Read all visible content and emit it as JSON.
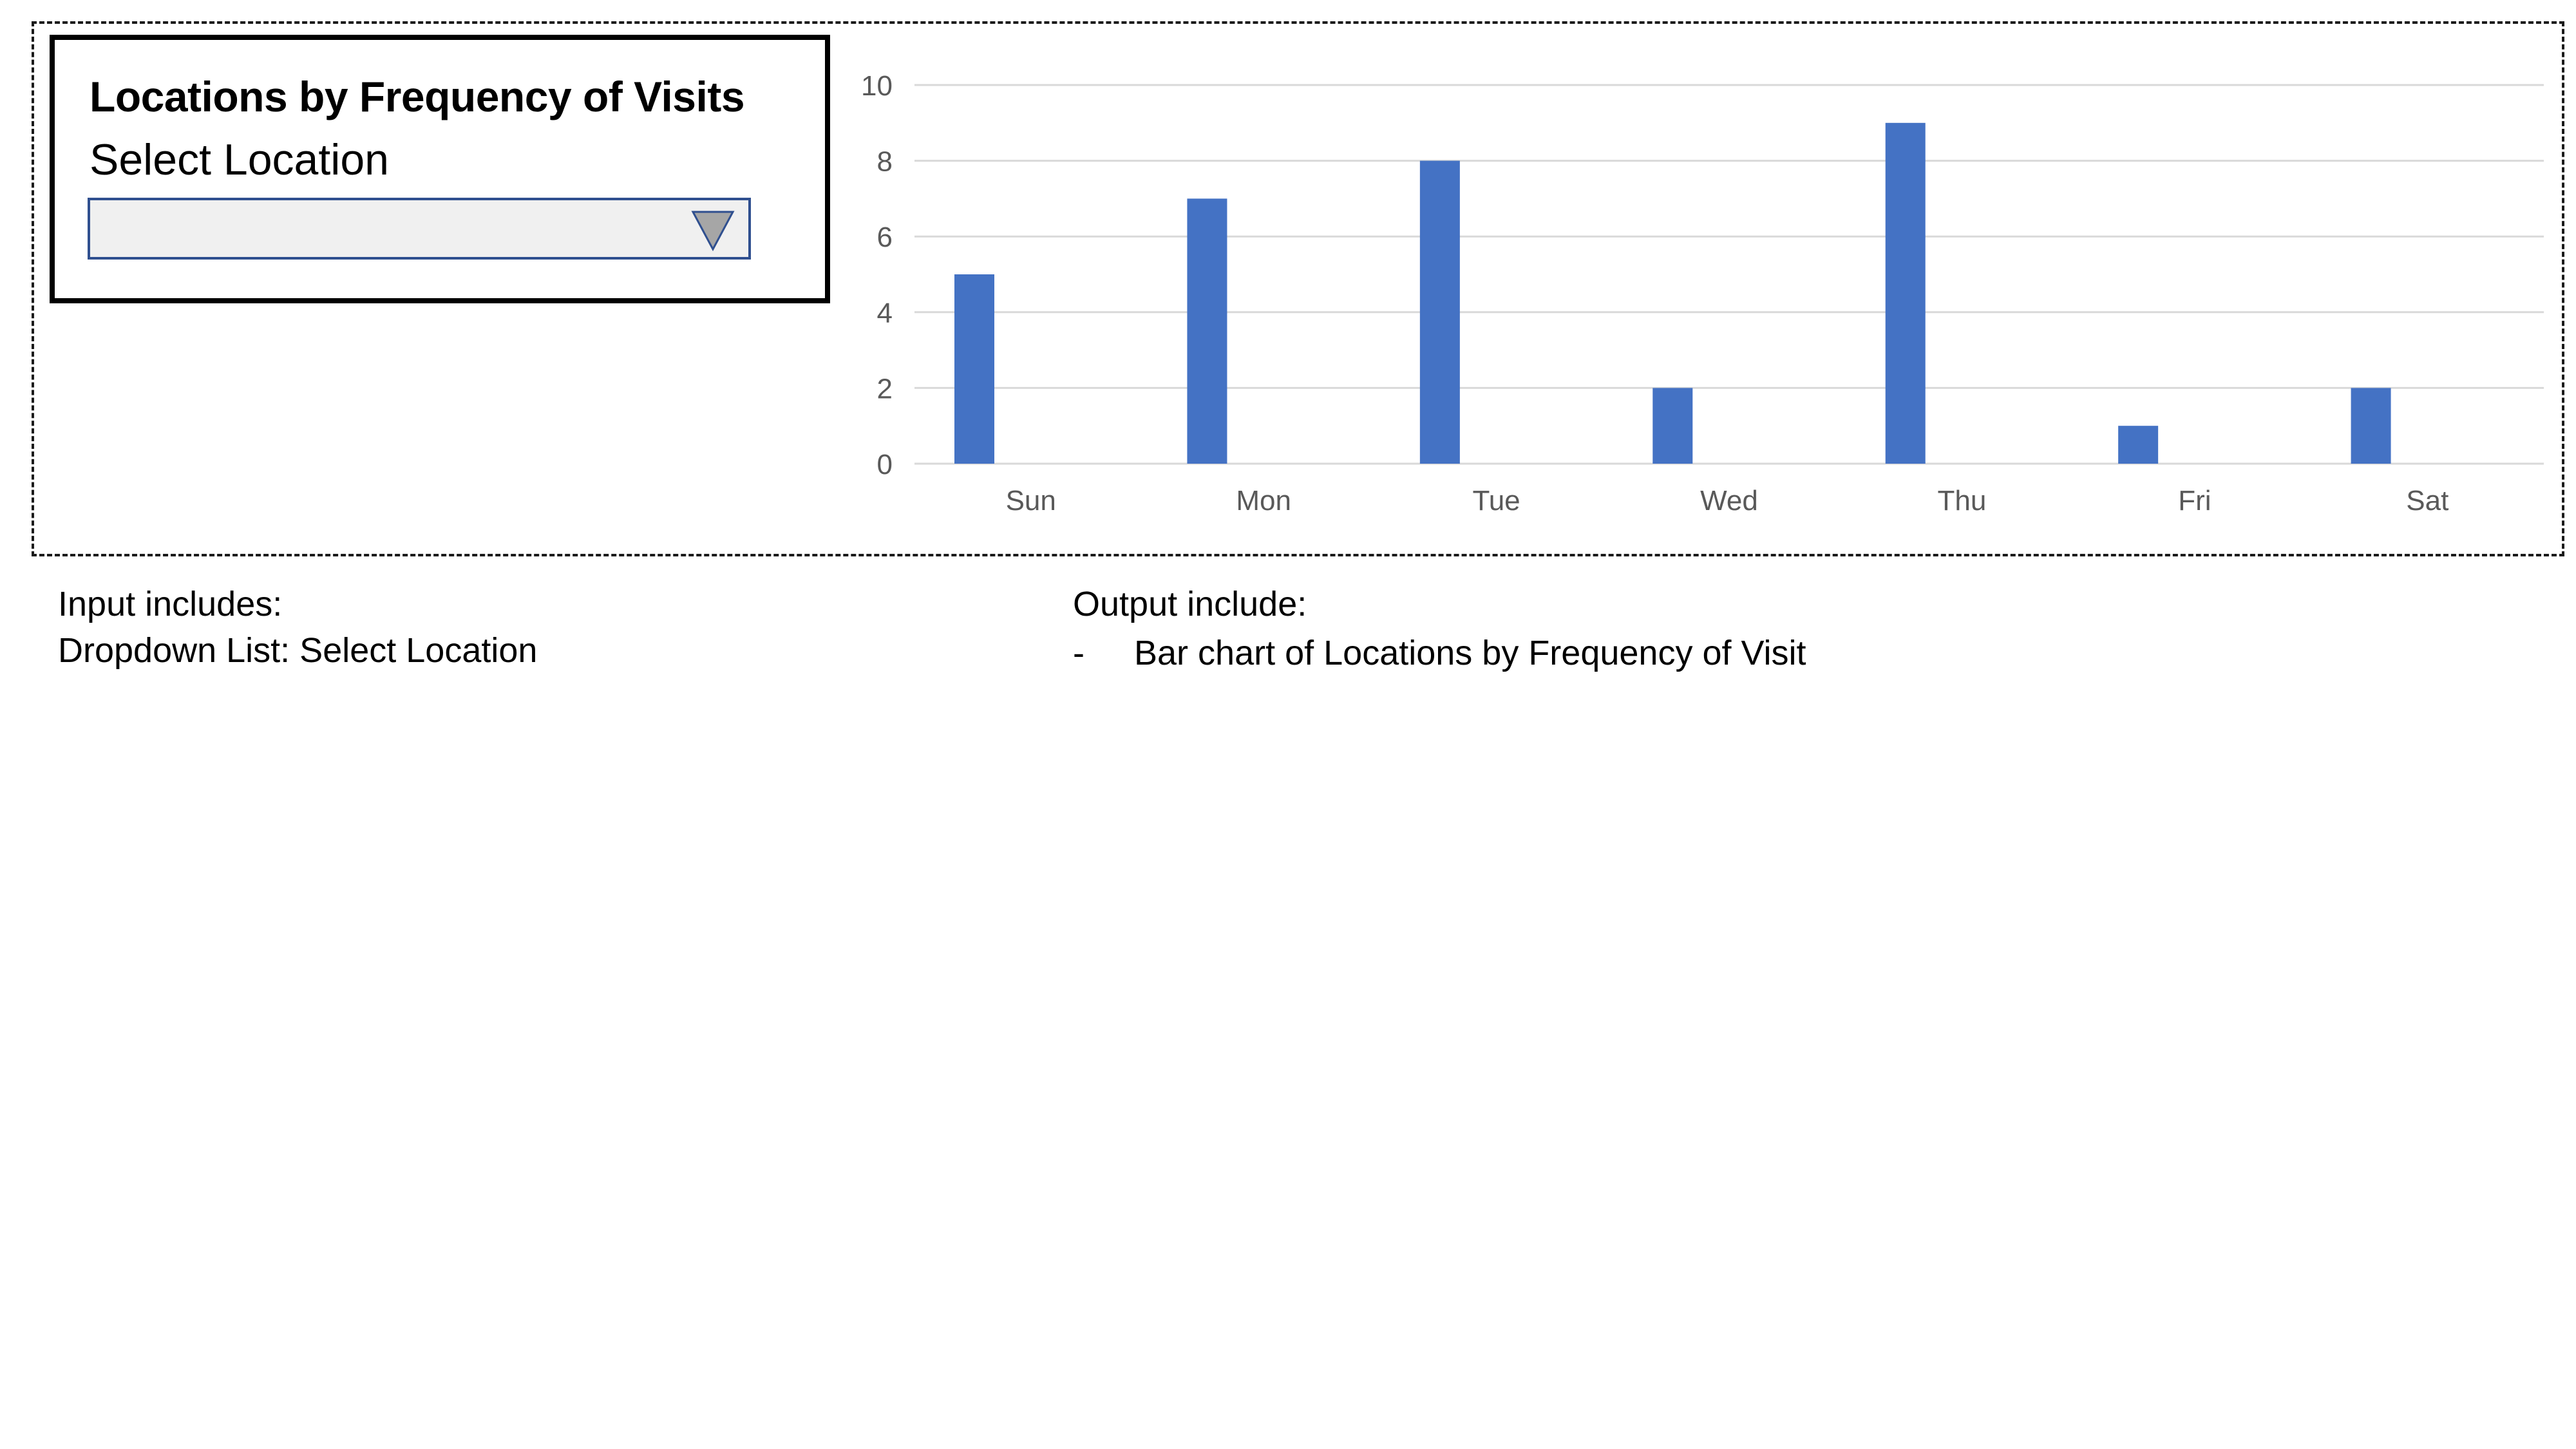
{
  "panel": {
    "title": "Locations by Frequency of Visits",
    "select_label": "Select Location",
    "dropdown_value": "",
    "dropdown_icon": "triangle-down-icon"
  },
  "chart_data": {
    "type": "bar",
    "title": "",
    "xlabel": "",
    "ylabel": "",
    "categories": [
      "Sun",
      "Mon",
      "Tue",
      "Wed",
      "Thu",
      "Fri",
      "Sat"
    ],
    "values": [
      5,
      7,
      8,
      2,
      9,
      1,
      2
    ],
    "ylim": [
      0,
      10
    ],
    "yticks": [
      0,
      2,
      4,
      6,
      8,
      10
    ],
    "grid": true,
    "color": "#4472c4"
  },
  "notes": {
    "input_heading": "Input includes:",
    "input_item": "Dropdown List: Select Location",
    "output_heading": "Output include:",
    "output_bullet": "-",
    "output_item": "Bar chart of Locations by Frequency of Visit"
  },
  "colors": {
    "bar": "#4472c4",
    "gridline": "#d9d9d9",
    "axis_text": "#595959",
    "dropdown_border": "#2f4f8f"
  }
}
